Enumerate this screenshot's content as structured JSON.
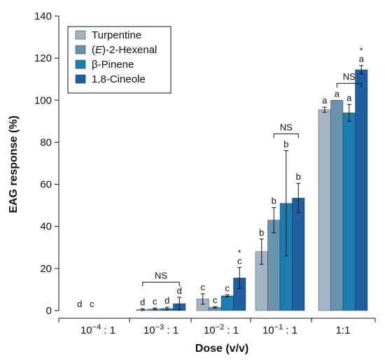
{
  "chart_data": {
    "type": "bar",
    "title": "",
    "xlabel": "Dose (v/v)",
    "ylabel": "EAG response (%)",
    "ylim": [
      0,
      140
    ],
    "yticks": [
      0,
      20,
      40,
      60,
      80,
      100,
      120,
      140
    ],
    "grid": false,
    "legend_position": "top-left",
    "categories": [
      {
        "base": "10",
        "exp": "−4",
        "suffix": " : 1"
      },
      {
        "base": "10",
        "exp": "−3",
        "suffix": " : 1"
      },
      {
        "base": "10",
        "exp": "−2",
        "suffix": " : 1"
      },
      {
        "base": "10",
        "exp": "−1",
        "suffix": " : 1"
      },
      {
        "base": "1:1",
        "exp": "",
        "suffix": ""
      }
    ],
    "series": [
      {
        "name": "Turpentine",
        "color": "#a3b5c4",
        "values": [
          0,
          0.5,
          5.5,
          28,
          95.5
        ],
        "errors": [
          null,
          0.4,
          2.5,
          6,
          1.2
        ],
        "labels": [
          "d",
          "d",
          "c",
          "b",
          "a"
        ],
        "stars": [
          false,
          false,
          false,
          false,
          false
        ]
      },
      {
        "name": "(E)-2-Hexenal",
        "name_parts": [
          "(",
          "E",
          ")-2-Hexenal"
        ],
        "color": "#6991b0",
        "values": [
          0,
          0.8,
          1.5,
          43,
          100
        ],
        "errors": [
          null,
          0.4,
          0.3,
          6,
          0
        ],
        "labels": [
          "c",
          "c",
          "c",
          "b",
          "a"
        ],
        "stars": [
          false,
          false,
          false,
          false,
          false
        ]
      },
      {
        "name": "β-Pinene",
        "color": "#1c7db1",
        "values": [
          0,
          1,
          7,
          51,
          94
        ],
        "errors": [
          null,
          0.6,
          0.5,
          25,
          4
        ],
        "labels": [
          "",
          "d",
          "c",
          "b",
          "a"
        ],
        "stars": [
          false,
          false,
          false,
          false,
          false
        ]
      },
      {
        "name": "1,8-Cineole",
        "color": "#1e5fa2",
        "values": [
          0,
          3.3,
          15.5,
          53.5,
          114.5
        ],
        "errors": [
          null,
          3,
          5,
          7,
          2
        ],
        "labels": [
          "",
          "d",
          "c",
          "b",
          "a"
        ],
        "stars": [
          false,
          false,
          true,
          false,
          true
        ]
      }
    ],
    "annotations": [
      {
        "text": "NS",
        "group": 1,
        "from_series": 0,
        "to_series": 3,
        "level": 13.5
      },
      {
        "text": "NS",
        "group": 3,
        "from_series": 1,
        "to_series": 3,
        "level": 84
      },
      {
        "text": "NS",
        "group": 4,
        "from_series": 1,
        "to_series": 3,
        "level": 108
      }
    ],
    "star_symbol": "*"
  }
}
